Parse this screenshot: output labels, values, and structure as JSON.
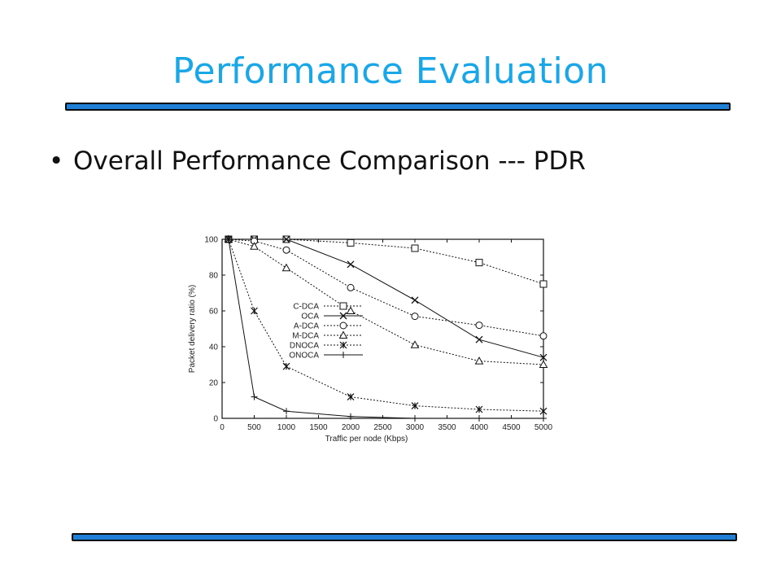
{
  "slide": {
    "title": "Performance Evaluation",
    "bullet": "Overall Performance Comparison --- PDR",
    "bullet_marker": "•",
    "accent_color": "#1aa7e8",
    "rule_color": "#1f7fd6"
  },
  "chart_data": {
    "type": "line",
    "title": "",
    "xlabel": "Traffic per node (Kbps)",
    "ylabel": "Packet delivery ratio (%)",
    "xlim": [
      0,
      5000
    ],
    "ylim": [
      0,
      100
    ],
    "xticks": [
      0,
      500,
      1000,
      1500,
      2000,
      2500,
      3000,
      3500,
      4000,
      4500,
      5000
    ],
    "yticks": [
      0,
      20,
      40,
      60,
      80,
      100
    ],
    "grid": false,
    "legend_position": "center-left",
    "x": [
      100,
      500,
      1000,
      2000,
      3000,
      4000,
      5000
    ],
    "series": [
      {
        "name": "C-DCA",
        "marker": "square",
        "dash": "dotted",
        "values": [
          100,
          100,
          100,
          98,
          95,
          87,
          75
        ]
      },
      {
        "name": "OCA",
        "marker": "x",
        "dash": "solid",
        "values": [
          100,
          100,
          100,
          86,
          66,
          44,
          34
        ]
      },
      {
        "name": "A-DCA",
        "marker": "circle",
        "dash": "dotted",
        "values": [
          100,
          99,
          94,
          73,
          57,
          52,
          46
        ]
      },
      {
        "name": "M-DCA",
        "marker": "triangle",
        "dash": "dotted",
        "values": [
          100,
          96,
          84,
          60,
          41,
          32,
          30
        ]
      },
      {
        "name": "DNOCA",
        "marker": "asterisk",
        "dash": "dotted",
        "values": [
          100,
          60,
          29,
          12,
          7,
          5,
          4
        ]
      },
      {
        "name": "ONOCA",
        "marker": "plus",
        "dash": "solid",
        "values": [
          100,
          12,
          4,
          1,
          0,
          0,
          0
        ]
      }
    ]
  }
}
